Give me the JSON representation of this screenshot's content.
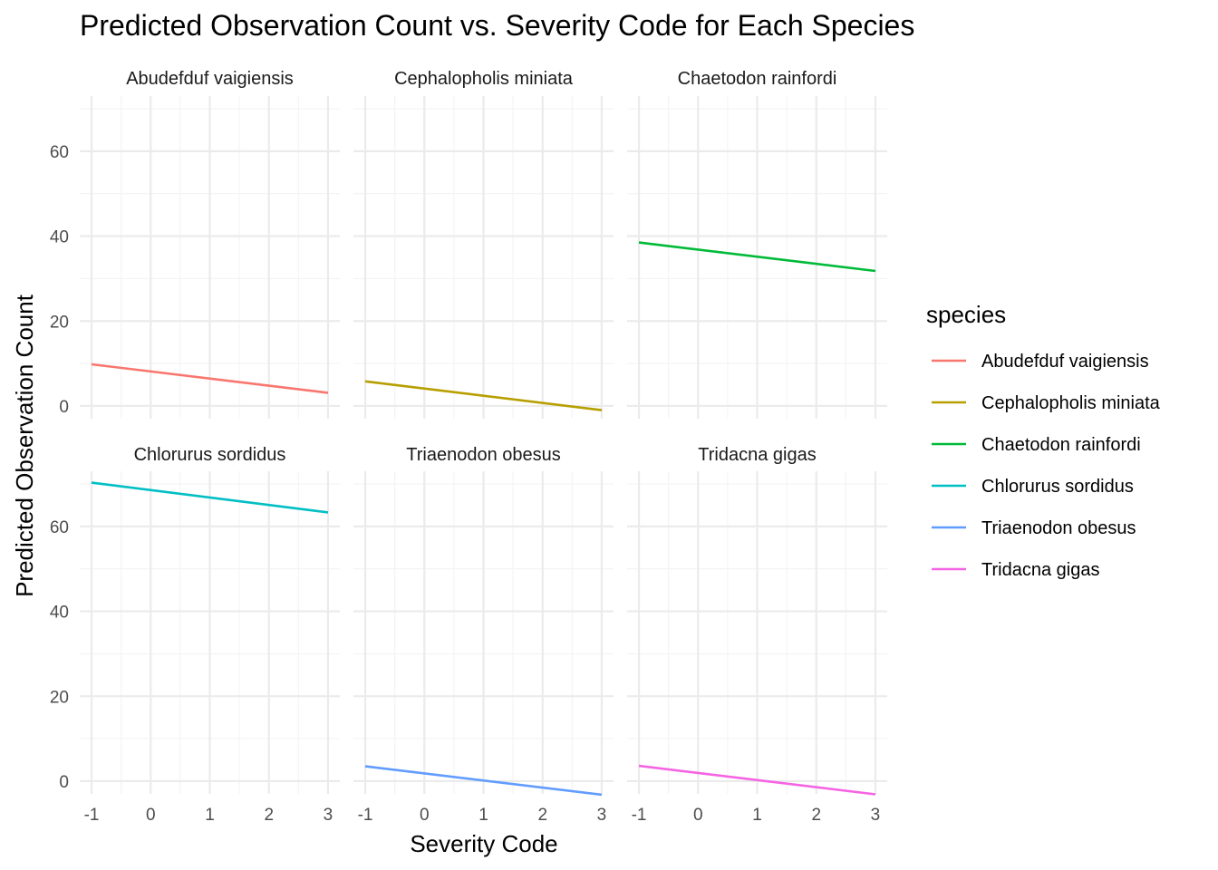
{
  "chart_data": {
    "type": "line",
    "title": "Predicted Observation Count vs. Severity Code for Each Species",
    "xlabel": "Severity Code",
    "ylabel": "Predicted Observation Count",
    "xlim": [
      -1.2,
      3.2
    ],
    "ylim": [
      -3.0,
      73.0
    ],
    "x_ticks": [
      -1,
      0,
      1,
      2,
      3
    ],
    "y_ticks": [
      0,
      20,
      40,
      60
    ],
    "grid": true,
    "layout": "facet 2 rows x 3 columns, shared axes",
    "legend": {
      "title": "species",
      "position": "right"
    },
    "series": [
      {
        "name": "Abudefduf vaigiensis",
        "color": "#F8766D",
        "x": [
          -1,
          3
        ],
        "y": [
          9.8,
          3.1
        ]
      },
      {
        "name": "Cephalopholis miniata",
        "color": "#B79F00",
        "x": [
          -1,
          3
        ],
        "y": [
          5.8,
          -1.0
        ]
      },
      {
        "name": "Chaetodon rainfordi",
        "color": "#00BA38",
        "x": [
          -1,
          3
        ],
        "y": [
          38.5,
          31.8
        ]
      },
      {
        "name": "Chlorurus sordidus",
        "color": "#00BFC4",
        "x": [
          -1,
          3
        ],
        "y": [
          70.3,
          63.3
        ]
      },
      {
        "name": "Triaenodon obesus",
        "color": "#619CFF",
        "x": [
          -1,
          3
        ],
        "y": [
          3.5,
          -3.2
        ]
      },
      {
        "name": "Tridacna gigas",
        "color": "#F564E3",
        "x": [
          -1,
          3
        ],
        "y": [
          3.6,
          -3.1
        ]
      }
    ]
  }
}
